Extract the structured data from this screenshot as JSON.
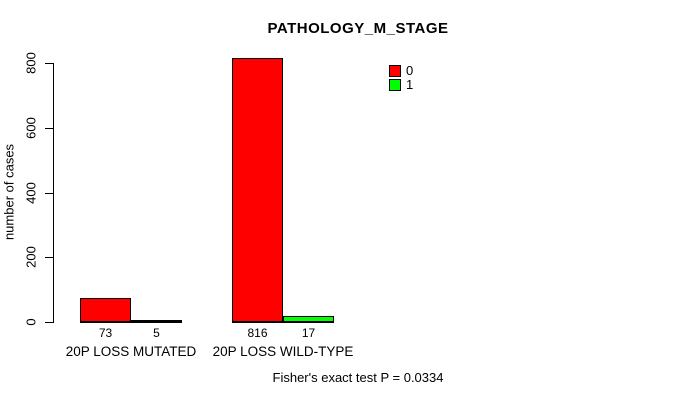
{
  "title": "PATHOLOGY_M_STAGE",
  "y_axis": {
    "label": "number of cases",
    "ticks": [
      0,
      200,
      400,
      600,
      800
    ]
  },
  "legend": {
    "entries": [
      {
        "label": "0",
        "color": "#FF0000"
      },
      {
        "label": "1",
        "color": "#00FF00"
      }
    ]
  },
  "footer": "Fisher's exact test P = 0.0334",
  "chart_data": {
    "type": "bar",
    "categories": [
      "20P LOSS MUTATED",
      "20P LOSS WILD-TYPE"
    ],
    "series": [
      {
        "name": "0",
        "color": "#FF0000",
        "values": [
          73,
          816
        ]
      },
      {
        "name": "1",
        "color": "#00FF00",
        "values": [
          5,
          17
        ]
      }
    ],
    "title": "PATHOLOGY_M_STAGE",
    "xlabel": "",
    "ylabel": "number of cases",
    "ylim": [
      0,
      800
    ],
    "grid": false,
    "legend_position": "top-right",
    "bar_value_labels": [
      [
        73,
        5
      ],
      [
        816,
        17
      ]
    ],
    "annotation": "Fisher's exact test P = 0.0334"
  }
}
